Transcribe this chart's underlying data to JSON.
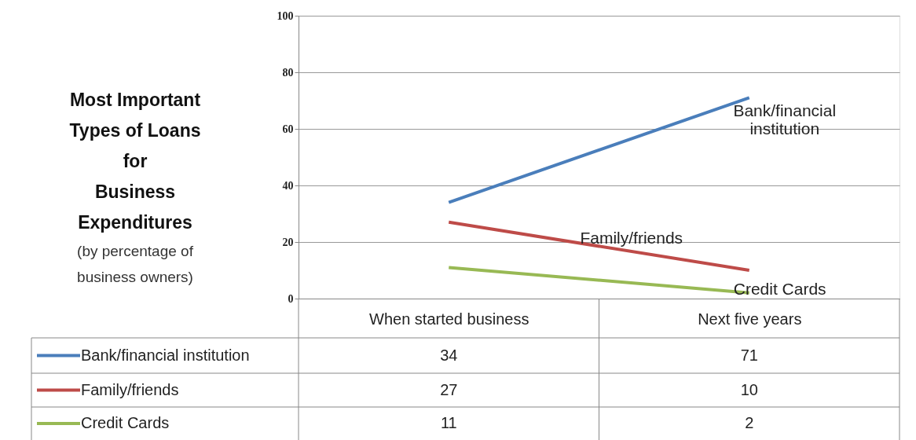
{
  "chart_data": {
    "type": "line",
    "title": "Most Important\nTypes of Loans\nfor\nBusiness\nExpenditures",
    "subtitle": "(by percentage of\nbusiness owners)",
    "categories": [
      "When started business",
      "Next five years"
    ],
    "series": [
      {
        "name": "Bank/financial institution",
        "color": "#4a7ebb",
        "values": [
          34,
          71
        ]
      },
      {
        "name": "Family/friends",
        "color": "#be4b48",
        "values": [
          27,
          10
        ]
      },
      {
        "name": "Credit Cards",
        "color": "#98b954",
        "values": [
          11,
          2
        ]
      }
    ],
    "ylim": [
      0,
      100
    ],
    "yticks": [
      0,
      20,
      40,
      60,
      80,
      100
    ],
    "grid": "y",
    "legend": "bottom left",
    "data_labels": true,
    "marker": "none",
    "line_style": "solid"
  }
}
